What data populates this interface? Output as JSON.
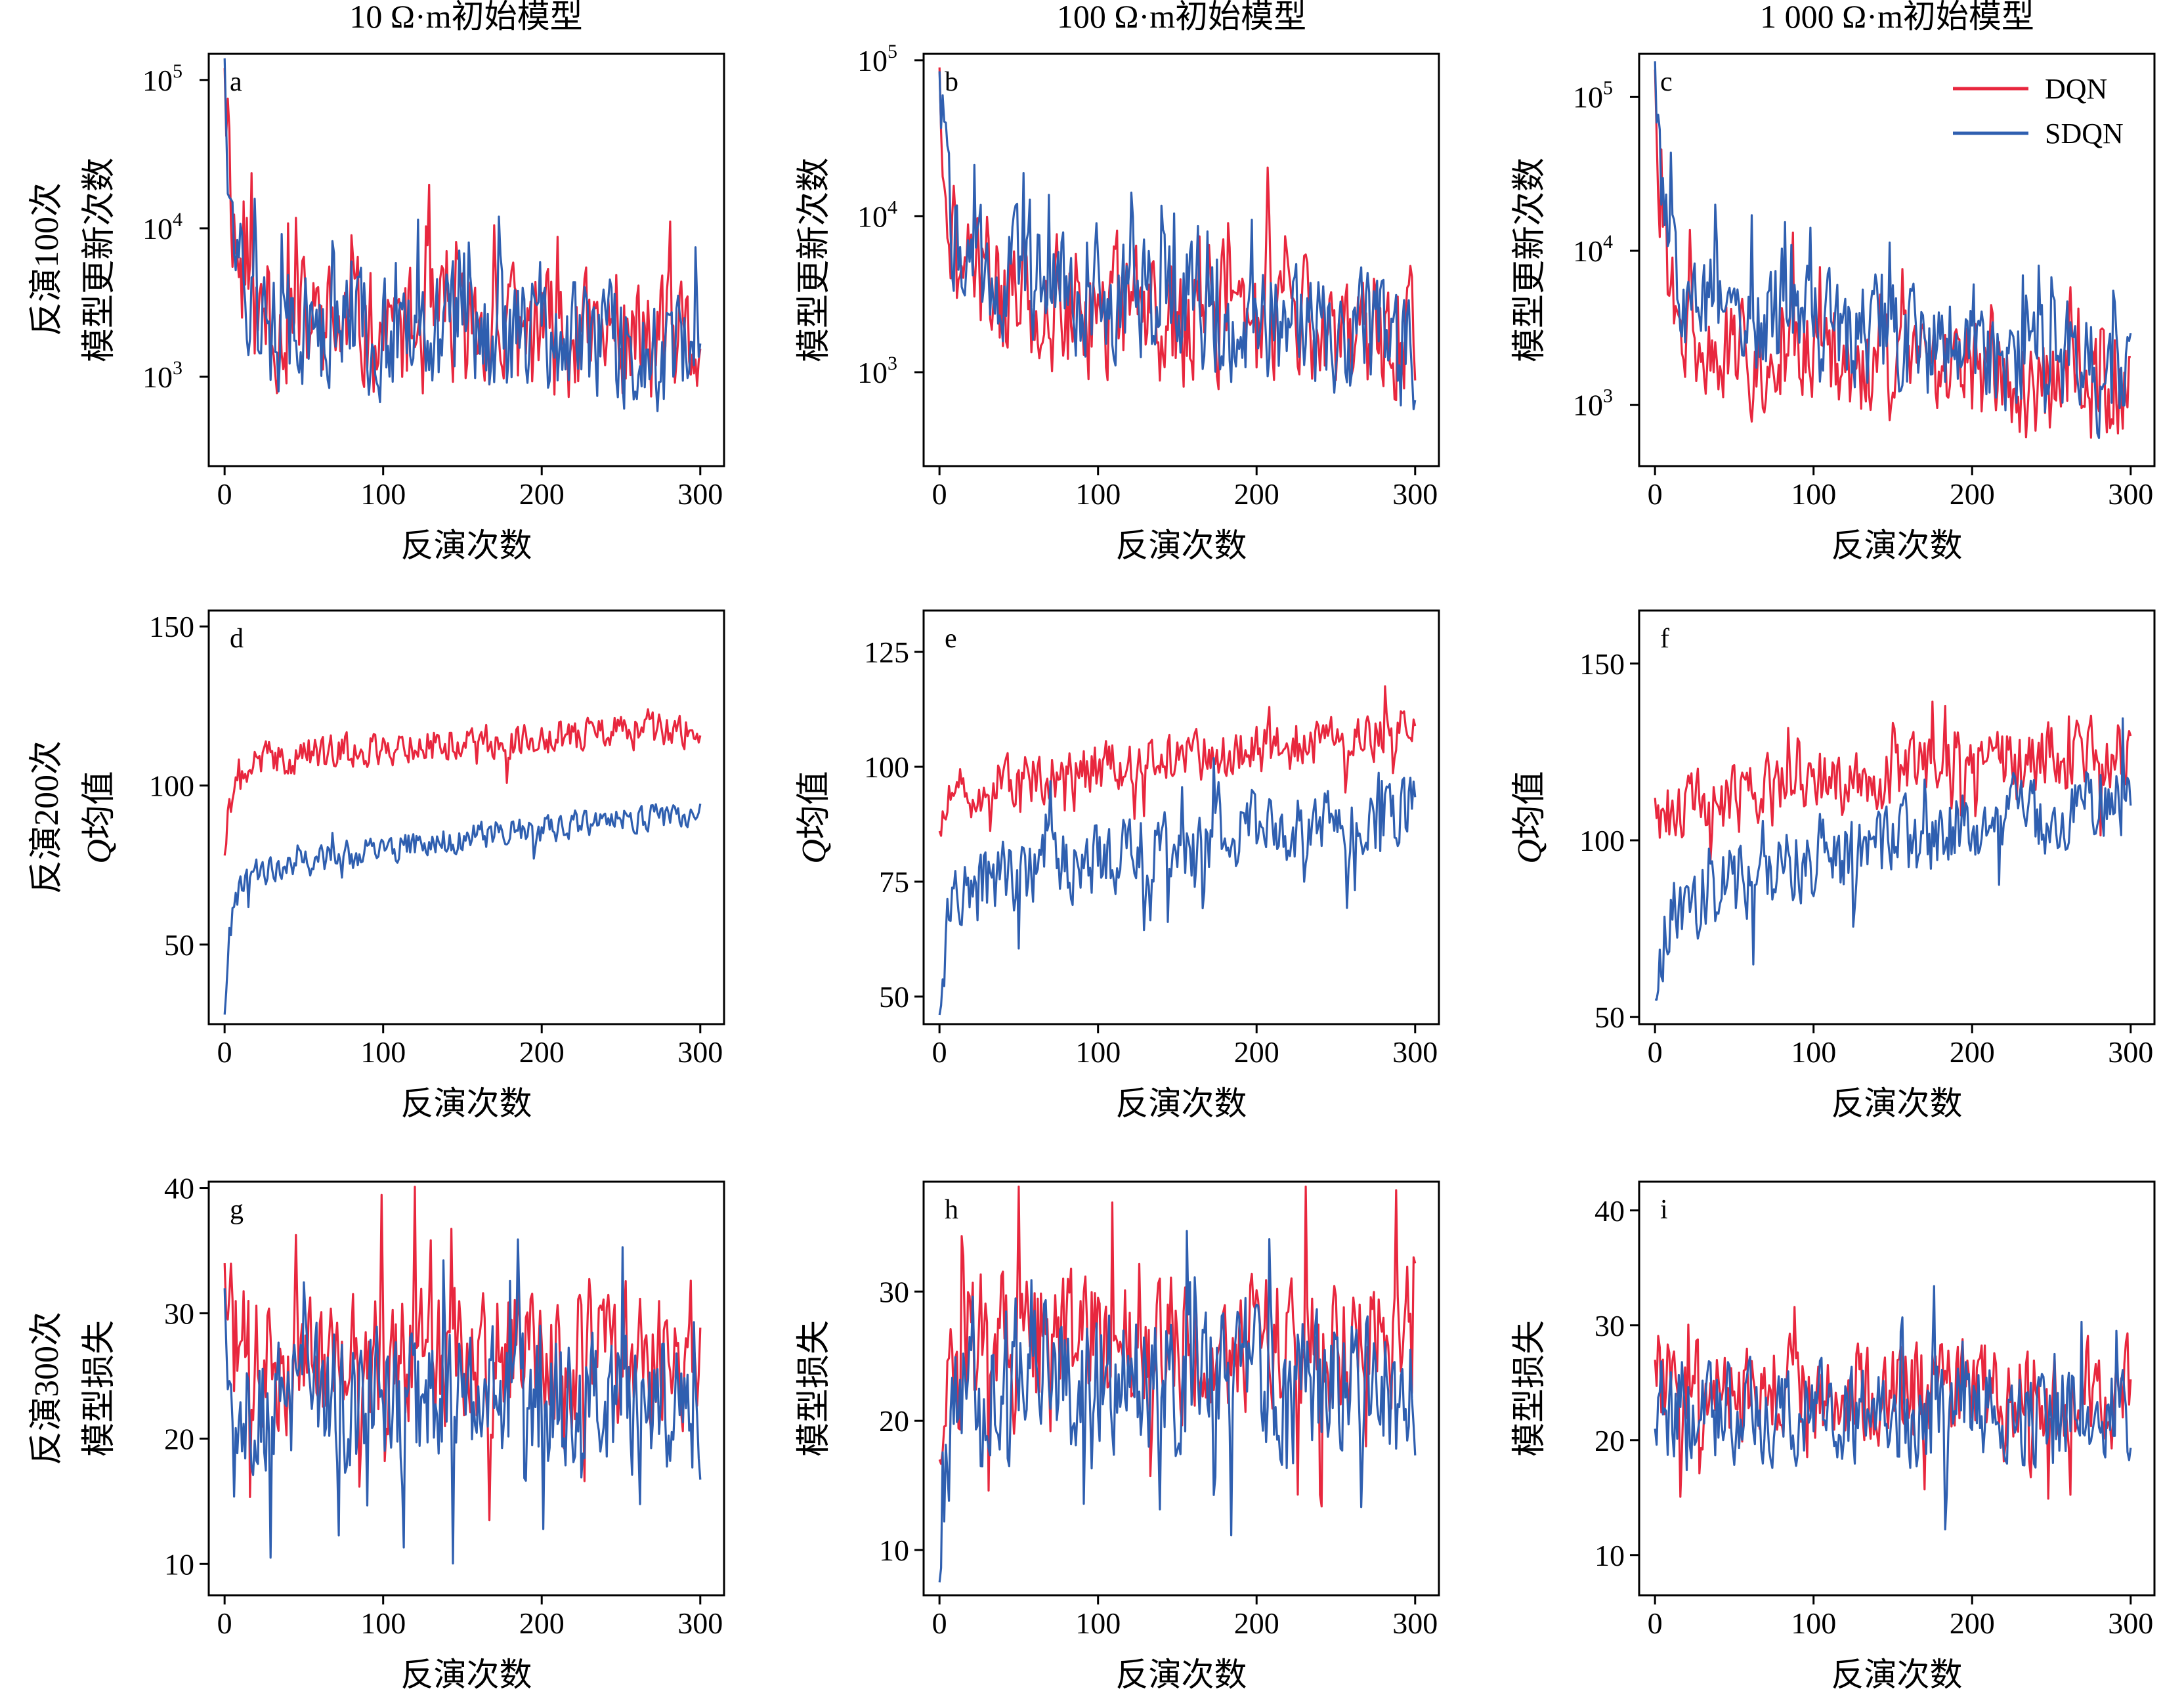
{
  "colors": {
    "DQN": "#e8273e",
    "SDQN": "#2f5fb0"
  },
  "column_titles": [
    "10 Ω·m初始模型",
    "100 Ω·m初始模型",
    "1 000 Ω·m初始模型"
  ],
  "row_labels": [
    "反演100次",
    "反演200次",
    "反演300次"
  ],
  "legend": {
    "placement": "top-right of panel c",
    "entries": [
      "DQN",
      "SDQN"
    ]
  },
  "chart_data": [
    {
      "id": "a",
      "panel_label": "a",
      "type": "line",
      "ylabel": "模型更新次数",
      "xlabel": "反演次数",
      "yscale": "log",
      "xlim": [
        -10,
        315
      ],
      "ylim": [
        250,
        150000
      ],
      "xticks": [
        0,
        100,
        200,
        300
      ],
      "yticks": [
        1000,
        10000,
        100000
      ],
      "ytick_labels": [
        {
          "base": "10",
          "exp": "3"
        },
        {
          "base": "10",
          "exp": "4"
        },
        {
          "base": "10",
          "exp": "5"
        }
      ],
      "series_gen": {
        "DQN": {
          "start": 120000,
          "trend_start": 2500,
          "trend_end": 1600,
          "spread": 0.38,
          "seed": 11
        },
        "SDQN": {
          "start": 140000,
          "trend_start": 2200,
          "trend_end": 1500,
          "spread": 0.36,
          "seed": 12
        }
      }
    },
    {
      "id": "b",
      "panel_label": "b",
      "type": "line",
      "ylabel": "模型更新次数",
      "xlabel": "反演次数",
      "yscale": "log",
      "xlim": [
        -10,
        315
      ],
      "ylim": [
        250,
        110000
      ],
      "xticks": [
        0,
        100,
        200,
        300
      ],
      "yticks": [
        1000,
        10000,
        100000
      ],
      "ytick_labels": [
        {
          "base": "10",
          "exp": "3"
        },
        {
          "base": "10",
          "exp": "4"
        },
        {
          "base": "10",
          "exp": "5"
        }
      ],
      "series_gen": {
        "DQN": {
          "start": 90000,
          "trend_start": 3500,
          "trend_end": 1700,
          "spread": 0.38,
          "seed": 21
        },
        "SDQN": {
          "start": 85000,
          "trend_start": 5000,
          "trend_end": 1400,
          "spread": 0.34,
          "seed": 22
        }
      }
    },
    {
      "id": "c",
      "panel_label": "c",
      "type": "line",
      "ylabel": "模型更新次数",
      "xlabel": "反演次数",
      "yscale": "log",
      "xlim": [
        -10,
        315
      ],
      "ylim": [
        400,
        190000
      ],
      "xticks": [
        0,
        100,
        200,
        300
      ],
      "yticks": [
        1000,
        10000,
        100000
      ],
      "ytick_labels": [
        {
          "base": "10",
          "exp": "3"
        },
        {
          "base": "10",
          "exp": "4"
        },
        {
          "base": "10",
          "exp": "5"
        }
      ],
      "series_gen": {
        "DQN": {
          "start": 150000,
          "trend_start": 2600,
          "trend_end": 1100,
          "spread": 0.3,
          "seed": 31
        },
        "SDQN": {
          "start": 170000,
          "trend_start": 5000,
          "trend_end": 1400,
          "spread": 0.32,
          "seed": 32
        }
      }
    },
    {
      "id": "d",
      "panel_label": "d",
      "type": "line",
      "ylabel": "均值",
      "ylabel_italic": "Q",
      "xlabel": "反演次数",
      "yscale": "linear",
      "xlim": [
        -10,
        315
      ],
      "ylim": [
        25,
        155
      ],
      "xticks": [
        0,
        100,
        200,
        300
      ],
      "yticks": [
        50,
        100,
        150
      ],
      "series_gen": {
        "DQN": {
          "start": 78,
          "trend_start": 105,
          "trend_end": 118,
          "spread": 5,
          "seed": 41
        },
        "SDQN": {
          "start": 28,
          "trend_start": 68,
          "trend_end": 91,
          "spread": 4,
          "seed": 42
        }
      }
    },
    {
      "id": "e",
      "panel_label": "e",
      "type": "line",
      "ylabel": "均值",
      "ylabel_italic": "Q",
      "xlabel": "反演次数",
      "yscale": "linear",
      "xlim": [
        -10,
        315
      ],
      "ylim": [
        44,
        134
      ],
      "xticks": [
        0,
        100,
        200,
        300
      ],
      "yticks": [
        50,
        75,
        100,
        125
      ],
      "series_gen": {
        "DQN": {
          "start": 86,
          "trend_start": 92,
          "trend_end": 107,
          "spread": 5,
          "seed": 51
        },
        "SDQN": {
          "start": 46,
          "trend_start": 70,
          "trend_end": 90,
          "spread": 7,
          "seed": 52
        }
      }
    },
    {
      "id": "f",
      "panel_label": "f",
      "type": "line",
      "ylabel": "均值",
      "ylabel_italic": "Q",
      "xlabel": "反演次数",
      "yscale": "linear",
      "xlim": [
        -10,
        315
      ],
      "ylim": [
        48,
        165
      ],
      "xticks": [
        0,
        100,
        200,
        300
      ],
      "yticks": [
        50,
        100,
        150
      ],
      "series_gen": {
        "DQN": {
          "start": 112,
          "trend_start": 105,
          "trend_end": 125,
          "spread": 9,
          "seed": 61
        },
        "SDQN": {
          "start": 55,
          "trend_start": 75,
          "trend_end": 112,
          "spread": 10,
          "seed": 62
        }
      }
    },
    {
      "id": "g",
      "panel_label": "g",
      "type": "line",
      "ylabel": "模型损失",
      "xlabel": "反演次数",
      "yscale": "linear",
      "xlim": [
        -10,
        315
      ],
      "ylim": [
        7.5,
        40.5
      ],
      "xticks": [
        0,
        100,
        200,
        300
      ],
      "yticks": [
        10,
        20,
        30,
        40
      ],
      "series_gen": {
        "DQN": {
          "start": 34,
          "trend_start": 26,
          "trend_end": 27,
          "spread": 5,
          "seed": 71
        },
        "SDQN": {
          "start": 32,
          "trend_start": 23,
          "trend_end": 23,
          "spread": 5,
          "seed": 72
        }
      }
    },
    {
      "id": "h",
      "panel_label": "h",
      "type": "line",
      "ylabel": "模型损失",
      "xlabel": "反演次数",
      "yscale": "linear",
      "xlim": [
        -10,
        315
      ],
      "ylim": [
        6.5,
        38.5
      ],
      "xticks": [
        0,
        100,
        200,
        300
      ],
      "yticks": [
        10,
        20,
        30
      ],
      "series_gen": {
        "DQN": {
          "start": 17,
          "trend_start": 26,
          "trend_end": 26,
          "spread": 5,
          "seed": 81
        },
        "SDQN": {
          "start": 7.5,
          "trend_start": 23,
          "trend_end": 23,
          "spread": 5,
          "seed": 82
        }
      }
    },
    {
      "id": "i",
      "panel_label": "i",
      "type": "line",
      "ylabel": "模型损失",
      "xlabel": "反演次数",
      "yscale": "linear",
      "xlim": [
        -10,
        315
      ],
      "ylim": [
        6.5,
        42.5
      ],
      "xticks": [
        0,
        100,
        200,
        300
      ],
      "yticks": [
        10,
        20,
        30,
        40
      ],
      "series_gen": {
        "DQN": {
          "start": 27,
          "trend_start": 25,
          "trend_end": 24,
          "spread": 4,
          "seed": 91
        },
        "SDQN": {
          "start": 21,
          "trend_start": 23,
          "trend_end": 22,
          "spread": 4,
          "seed": 92
        }
      }
    }
  ]
}
